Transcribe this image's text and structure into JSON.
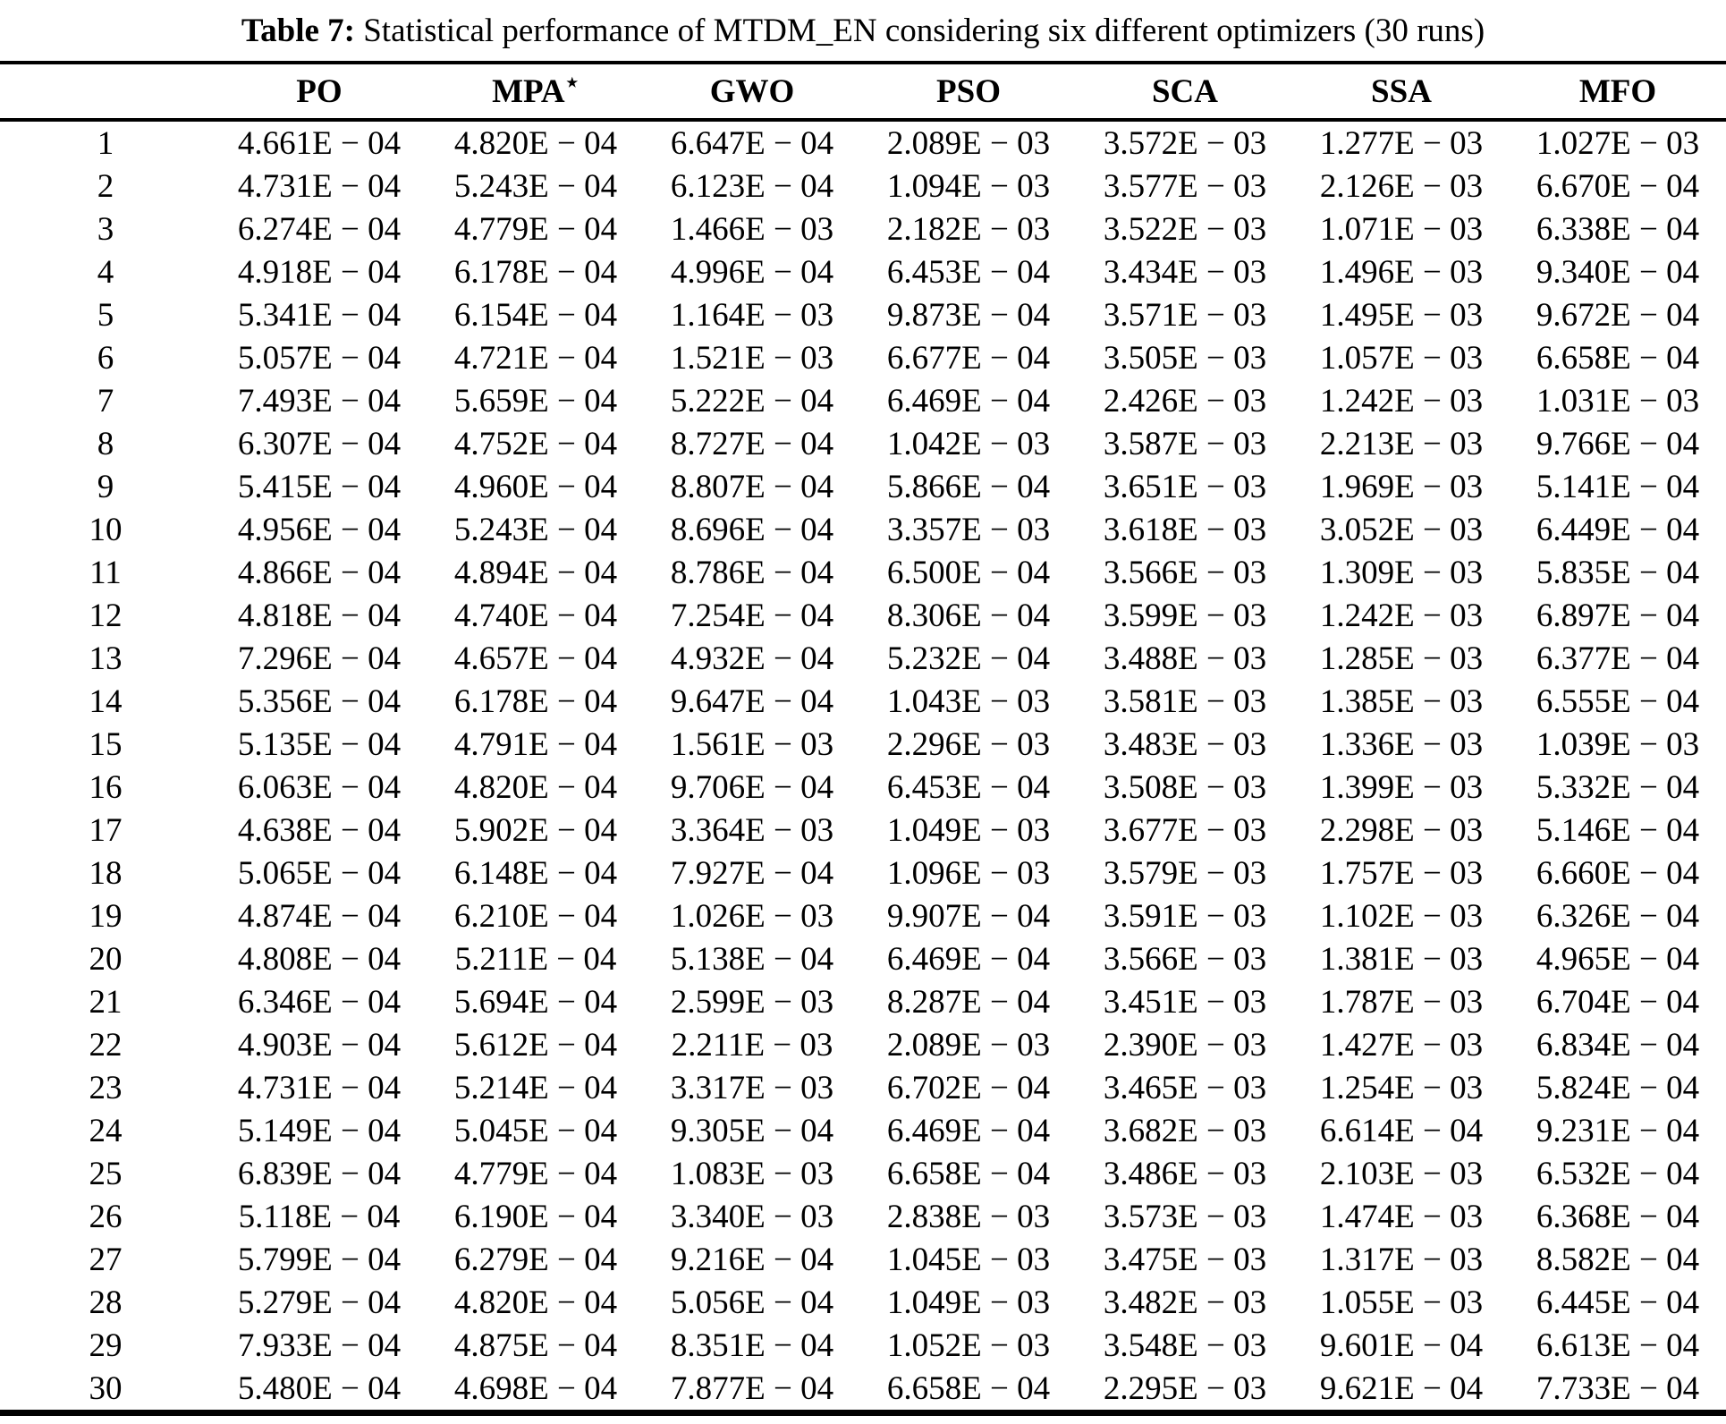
{
  "caption": {
    "label": "Table 7:",
    "text": " Statistical performance of MTDM_EN considering six different optimizers (30 runs)"
  },
  "table": {
    "columns": [
      "",
      "PO",
      "MPA",
      "GWO",
      "PSO",
      "SCA",
      "SSA",
      "MFO"
    ],
    "mpa_star": "⋆",
    "rows": [
      {
        "run": "1",
        "values": [
          "4.661E − 04",
          "4.820E − 04",
          "6.647E − 04",
          "2.089E − 03",
          "3.572E − 03",
          "1.277E − 03",
          "1.027E − 03"
        ]
      },
      {
        "run": "2",
        "values": [
          "4.731E − 04",
          "5.243E − 04",
          "6.123E − 04",
          "1.094E − 03",
          "3.577E − 03",
          "2.126E − 03",
          "6.670E − 04"
        ]
      },
      {
        "run": "3",
        "values": [
          "6.274E − 04",
          "4.779E − 04",
          "1.466E − 03",
          "2.182E − 03",
          "3.522E − 03",
          "1.071E − 03",
          "6.338E − 04"
        ]
      },
      {
        "run": "4",
        "values": [
          "4.918E − 04",
          "6.178E − 04",
          "4.996E − 04",
          "6.453E − 04",
          "3.434E − 03",
          "1.496E − 03",
          "9.340E − 04"
        ]
      },
      {
        "run": "5",
        "values": [
          "5.341E − 04",
          "6.154E − 04",
          "1.164E − 03",
          "9.873E − 04",
          "3.571E − 03",
          "1.495E − 03",
          "9.672E − 04"
        ]
      },
      {
        "run": "6",
        "values": [
          "5.057E − 04",
          "4.721E − 04",
          "1.521E − 03",
          "6.677E − 04",
          "3.505E − 03",
          "1.057E − 03",
          "6.658E − 04"
        ]
      },
      {
        "run": "7",
        "values": [
          "7.493E − 04",
          "5.659E − 04",
          "5.222E − 04",
          "6.469E − 04",
          "2.426E − 03",
          "1.242E − 03",
          "1.031E − 03"
        ]
      },
      {
        "run": "8",
        "values": [
          "6.307E − 04",
          "4.752E − 04",
          "8.727E − 04",
          "1.042E − 03",
          "3.587E − 03",
          "2.213E − 03",
          "9.766E − 04"
        ]
      },
      {
        "run": "9",
        "values": [
          "5.415E − 04",
          "4.960E − 04",
          "8.807E − 04",
          "5.866E − 04",
          "3.651E − 03",
          "1.969E − 03",
          "5.141E − 04"
        ]
      },
      {
        "run": "10",
        "values": [
          "4.956E − 04",
          "5.243E − 04",
          "8.696E − 04",
          "3.357E − 03",
          "3.618E − 03",
          "3.052E − 03",
          "6.449E − 04"
        ]
      },
      {
        "run": "11",
        "values": [
          "4.866E − 04",
          "4.894E − 04",
          "8.786E − 04",
          "6.500E − 04",
          "3.566E − 03",
          "1.309E − 03",
          "5.835E − 04"
        ]
      },
      {
        "run": "12",
        "values": [
          "4.818E − 04",
          "4.740E − 04",
          "7.254E − 04",
          "8.306E − 04",
          "3.599E − 03",
          "1.242E − 03",
          "6.897E − 04"
        ]
      },
      {
        "run": "13",
        "values": [
          "7.296E − 04",
          "4.657E − 04",
          "4.932E − 04",
          "5.232E − 04",
          "3.488E − 03",
          "1.285E − 03",
          "6.377E − 04"
        ]
      },
      {
        "run": "14",
        "values": [
          "5.356E − 04",
          "6.178E − 04",
          "9.647E − 04",
          "1.043E − 03",
          "3.581E − 03",
          "1.385E − 03",
          "6.555E − 04"
        ]
      },
      {
        "run": "15",
        "values": [
          "5.135E − 04",
          "4.791E − 04",
          "1.561E − 03",
          "2.296E − 03",
          "3.483E − 03",
          "1.336E − 03",
          "1.039E − 03"
        ]
      },
      {
        "run": "16",
        "values": [
          "6.063E − 04",
          "4.820E − 04",
          "9.706E − 04",
          "6.453E − 04",
          "3.508E − 03",
          "1.399E − 03",
          "5.332E − 04"
        ]
      },
      {
        "run": "17",
        "values": [
          "4.638E − 04",
          "5.902E − 04",
          "3.364E − 03",
          "1.049E − 03",
          "3.677E − 03",
          "2.298E − 03",
          "5.146E − 04"
        ]
      },
      {
        "run": "18",
        "values": [
          "5.065E − 04",
          "6.148E − 04",
          "7.927E − 04",
          "1.096E − 03",
          "3.579E − 03",
          "1.757E − 03",
          "6.660E − 04"
        ]
      },
      {
        "run": "19",
        "values": [
          "4.874E − 04",
          "6.210E − 04",
          "1.026E − 03",
          "9.907E − 04",
          "3.591E − 03",
          "1.102E − 03",
          "6.326E − 04"
        ]
      },
      {
        "run": "20",
        "values": [
          "4.808E − 04",
          "5.211E − 04",
          "5.138E − 04",
          "6.469E − 04",
          "3.566E − 03",
          "1.381E − 03",
          "4.965E − 04"
        ]
      },
      {
        "run": "21",
        "values": [
          "6.346E − 04",
          "5.694E − 04",
          "2.599E − 03",
          "8.287E − 04",
          "3.451E − 03",
          "1.787E − 03",
          "6.704E − 04"
        ]
      },
      {
        "run": "22",
        "values": [
          "4.903E − 04",
          "5.612E − 04",
          "2.211E − 03",
          "2.089E − 03",
          "2.390E − 03",
          "1.427E − 03",
          "6.834E − 04"
        ]
      },
      {
        "run": "23",
        "values": [
          "4.731E − 04",
          "5.214E − 04",
          "3.317E − 03",
          "6.702E − 04",
          "3.465E − 03",
          "1.254E − 03",
          "5.824E − 04"
        ]
      },
      {
        "run": "24",
        "values": [
          "5.149E − 04",
          "5.045E − 04",
          "9.305E − 04",
          "6.469E − 04",
          "3.682E − 03",
          "6.614E − 04",
          "9.231E − 04"
        ]
      },
      {
        "run": "25",
        "values": [
          "6.839E − 04",
          "4.779E − 04",
          "1.083E − 03",
          "6.658E − 04",
          "3.486E − 03",
          "2.103E − 03",
          "6.532E − 04"
        ]
      },
      {
        "run": "26",
        "values": [
          "5.118E − 04",
          "6.190E − 04",
          "3.340E − 03",
          "2.838E − 03",
          "3.573E − 03",
          "1.474E − 03",
          "6.368E − 04"
        ]
      },
      {
        "run": "27",
        "values": [
          "5.799E − 04",
          "6.279E − 04",
          "9.216E − 04",
          "1.045E − 03",
          "3.475E − 03",
          "1.317E − 03",
          "8.582E − 04"
        ]
      },
      {
        "run": "28",
        "values": [
          "5.279E − 04",
          "4.820E − 04",
          "5.056E − 04",
          "1.049E − 03",
          "3.482E − 03",
          "1.055E − 03",
          "6.445E − 04"
        ]
      },
      {
        "run": "29",
        "values": [
          "7.933E − 04",
          "4.875E − 04",
          "8.351E − 04",
          "1.052E − 03",
          "3.548E − 03",
          "9.601E − 04",
          "6.613E − 04"
        ]
      },
      {
        "run": "30",
        "values": [
          "5.480E − 04",
          "4.698E − 04",
          "7.877E − 04",
          "6.658E − 04",
          "2.295E − 03",
          "9.621E − 04",
          "7.733E − 04"
        ]
      }
    ]
  },
  "colors": {
    "background": "#ffffff",
    "text": "#000000",
    "rule": "#000000"
  }
}
